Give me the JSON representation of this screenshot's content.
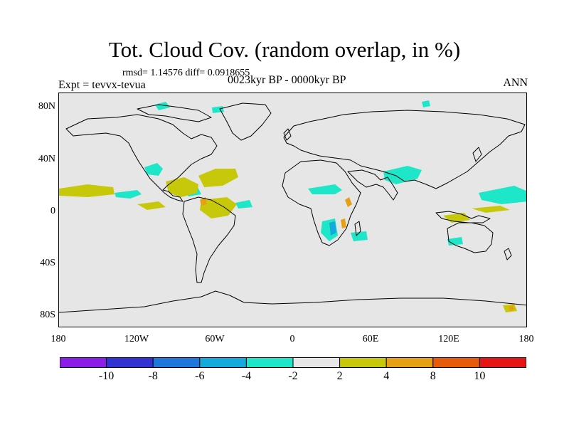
{
  "title": "Tot. Cloud Cov. (random overlap, in %)",
  "stats": "rmsd= 1.14576 diff= 0.0918655",
  "subtitle": "0023kyr BP - 0000kyr BP",
  "experiment": "Expt = tevvx-tevua",
  "season": "ANN",
  "map": {
    "background_color": "#e6e6e6",
    "lat_labels": [
      "80N",
      "40N",
      "0",
      "40S",
      "80S"
    ],
    "lon_labels": [
      "180",
      "120W",
      "60W",
      "0",
      "60E",
      "120E",
      "180"
    ]
  },
  "colorbar": {
    "labels": [
      "-10",
      "-8",
      "-6",
      "-4",
      "-2",
      "2",
      "4",
      "8",
      "10"
    ],
    "colors": [
      "#8a1ee6",
      "#3232d2",
      "#1e78dc",
      "#14aadc",
      "#1ee6c8",
      "#e6e6e6",
      "#c8c80a",
      "#e6a014",
      "#e65a0a",
      "#e61414"
    ]
  }
}
